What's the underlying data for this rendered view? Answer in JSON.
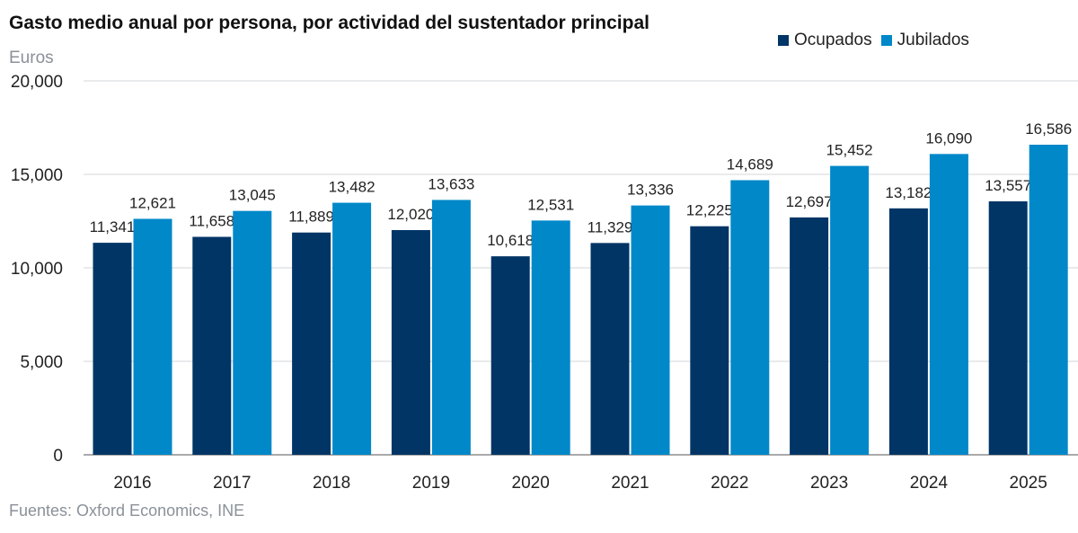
{
  "chart_data": {
    "type": "bar",
    "title": "Gasto medio anual por persona, por actividad del sustentador principal",
    "ylabel": "Euros",
    "xlabel": "",
    "categories": [
      "2016",
      "2017",
      "2018",
      "2019",
      "2020",
      "2021",
      "2022",
      "2023",
      "2024",
      "2025"
    ],
    "series": [
      {
        "name": "Ocupados",
        "color": "#003566",
        "values": [
          11341,
          11658,
          11889,
          12020,
          10618,
          11329,
          12225,
          12697,
          13182,
          13557
        ],
        "labels": [
          "11,341",
          "11,658",
          "11,889",
          "12,020",
          "10,618",
          "11,329",
          "12,225",
          "12,697",
          "13,182",
          "13,557"
        ]
      },
      {
        "name": "Jubilados",
        "color": "#0088c9",
        "values": [
          12621,
          13045,
          13482,
          13633,
          12531,
          13336,
          14689,
          15452,
          16090,
          16586
        ],
        "labels": [
          "12,621",
          "13,045",
          "13,482",
          "13,633",
          "12,531",
          "13,336",
          "14,689",
          "15,452",
          "16,090",
          "16,586"
        ]
      }
    ],
    "ylim": [
      0,
      20000
    ],
    "yticks": [
      0,
      5000,
      10000,
      15000,
      20000
    ],
    "ytick_labels": [
      "0",
      "5,000",
      "10,000",
      "15,000",
      "20,000"
    ],
    "grid": true,
    "legend_position": "top-right",
    "source": "Fuentes: Oxford Economics, INE"
  }
}
